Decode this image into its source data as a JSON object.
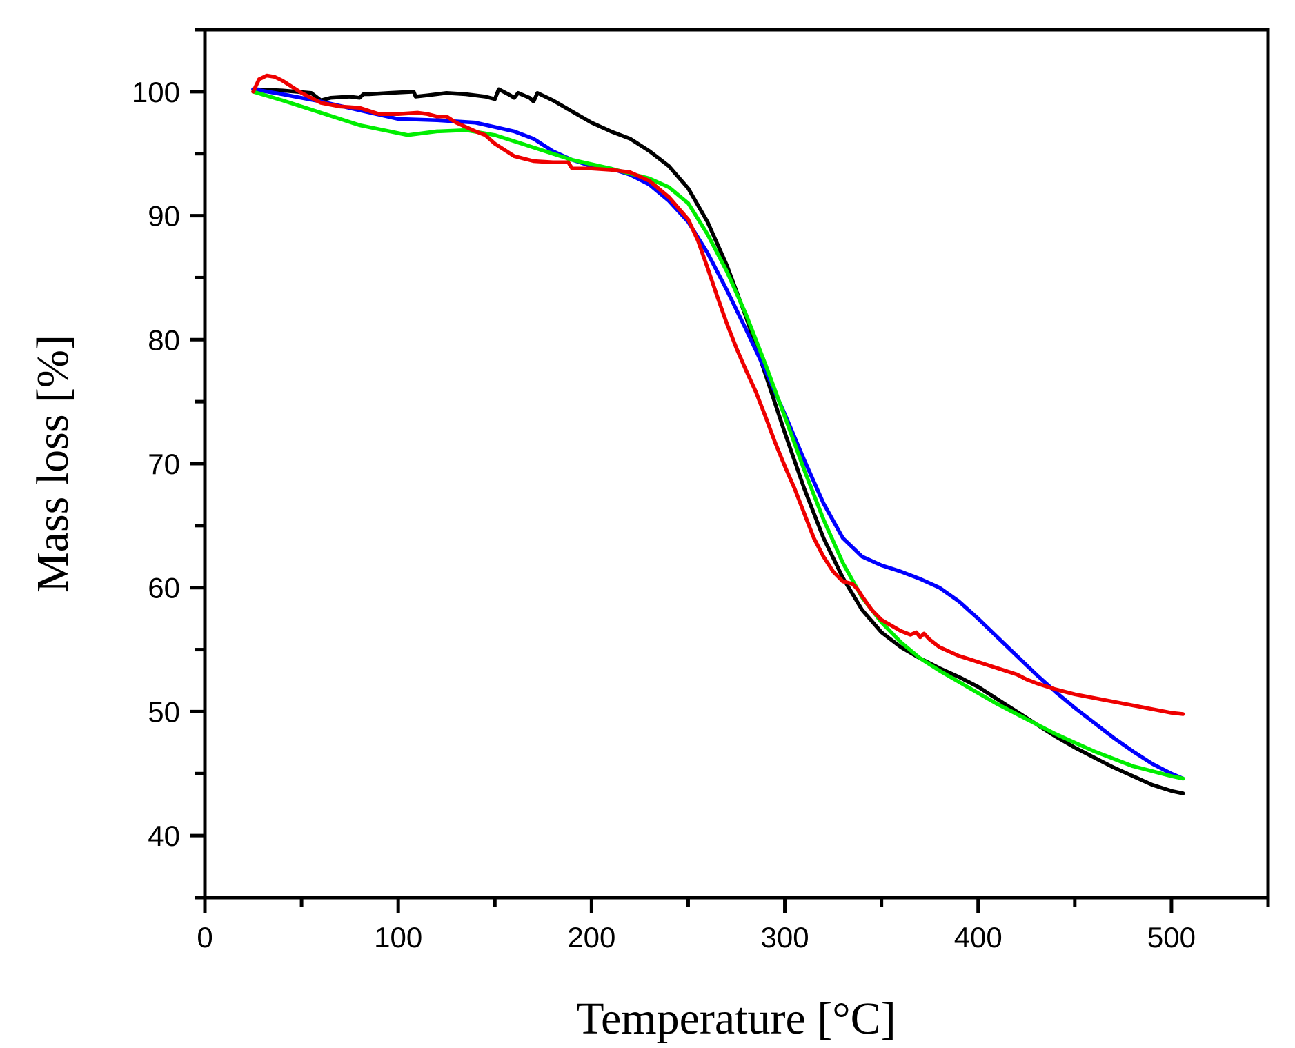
{
  "chart_data": {
    "type": "line",
    "title": "",
    "xlabel": "Temperature [°C]",
    "ylabel": "Mass loss [%]",
    "xlim": [
      0,
      550
    ],
    "ylim": [
      35,
      105
    ],
    "xticks": [
      0,
      100,
      200,
      300,
      400,
      500
    ],
    "xticks_minor": [
      50,
      150,
      250,
      350,
      450,
      550
    ],
    "xtick_labels": [
      "0",
      "100",
      "200",
      "300",
      "400",
      "500"
    ],
    "yticks": [
      40,
      50,
      60,
      70,
      80,
      90,
      100
    ],
    "yticks_minor": [
      35,
      45,
      55,
      65,
      75,
      85,
      95,
      105
    ],
    "ytick_labels": [
      "40",
      "50",
      "60",
      "70",
      "80",
      "90",
      "100"
    ],
    "grid": false,
    "legend": "none",
    "series": [
      {
        "name": "black",
        "color": "#000000",
        "x": [
          25,
          40,
          55,
          60,
          65,
          75,
          80,
          82,
          85,
          95,
          108,
          109,
          115,
          125,
          135,
          145,
          150,
          152,
          158,
          160,
          162,
          168,
          170,
          172,
          180,
          190,
          200,
          210,
          220,
          230,
          240,
          250,
          260,
          270,
          280,
          290,
          300,
          310,
          320,
          330,
          340,
          350,
          360,
          370,
          380,
          390,
          400,
          410,
          420,
          430,
          440,
          450,
          460,
          470,
          480,
          490,
          500,
          506
        ],
        "y": [
          100.2,
          100.1,
          99.9,
          99.3,
          99.5,
          99.6,
          99.5,
          99.8,
          99.8,
          99.9,
          100.0,
          99.6,
          99.7,
          99.9,
          99.8,
          99.6,
          99.4,
          100.2,
          99.7,
          99.5,
          99.9,
          99.5,
          99.2,
          99.9,
          99.3,
          98.4,
          97.5,
          96.8,
          96.2,
          95.2,
          94.0,
          92.2,
          89.5,
          86.0,
          81.8,
          77.2,
          72.5,
          68.0,
          64.0,
          60.8,
          58.2,
          56.4,
          55.2,
          54.3,
          53.5,
          52.8,
          52.0,
          51.0,
          50.0,
          49.0,
          48.0,
          47.1,
          46.3,
          45.5,
          44.8,
          44.1,
          43.6,
          43.4
        ]
      },
      {
        "name": "blue",
        "color": "#0000ff",
        "x": [
          25,
          40,
          60,
          80,
          100,
          120,
          140,
          160,
          170,
          180,
          190,
          200,
          210,
          220,
          230,
          240,
          250,
          260,
          270,
          280,
          290,
          300,
          310,
          320,
          330,
          340,
          350,
          360,
          370,
          380,
          390,
          400,
          410,
          420,
          430,
          440,
          450,
          460,
          470,
          480,
          490,
          500,
          506
        ],
        "y": [
          100.2,
          99.8,
          99.2,
          98.5,
          97.8,
          97.7,
          97.5,
          96.8,
          96.2,
          95.2,
          94.5,
          94.0,
          93.8,
          93.3,
          92.5,
          91.2,
          89.5,
          87.0,
          84.0,
          80.8,
          77.5,
          74.0,
          70.3,
          66.8,
          64.0,
          62.5,
          61.8,
          61.3,
          60.7,
          60.0,
          58.9,
          57.5,
          56.0,
          54.5,
          53.0,
          51.6,
          50.3,
          49.1,
          47.9,
          46.8,
          45.8,
          45.0,
          44.6
        ]
      },
      {
        "name": "green",
        "color": "#00ee00",
        "x": [
          25,
          40,
          60,
          80,
          105,
          120,
          135,
          150,
          170,
          190,
          210,
          230,
          240,
          250,
          260,
          270,
          280,
          290,
          300,
          310,
          320,
          330,
          340,
          350,
          360,
          370,
          380,
          390,
          400,
          410,
          420,
          430,
          440,
          450,
          460,
          470,
          480,
          490,
          500,
          506
        ],
        "y": [
          100.0,
          99.3,
          98.3,
          97.3,
          96.5,
          96.8,
          96.9,
          96.5,
          95.5,
          94.5,
          93.8,
          93.0,
          92.3,
          91.0,
          88.5,
          85.5,
          82.0,
          78.0,
          73.8,
          69.5,
          65.5,
          62.0,
          59.2,
          57.2,
          55.6,
          54.3,
          53.3,
          52.4,
          51.5,
          50.6,
          49.8,
          49.0,
          48.2,
          47.5,
          46.8,
          46.2,
          45.6,
          45.2,
          44.8,
          44.6
        ]
      },
      {
        "name": "red",
        "color": "#ee0000",
        "x": [
          25,
          28,
          32,
          36,
          40,
          45,
          50,
          55,
          60,
          70,
          80,
          90,
          100,
          110,
          115,
          120,
          125,
          130,
          140,
          145,
          150,
          160,
          170,
          180,
          188,
          190,
          200,
          210,
          220,
          230,
          240,
          250,
          255,
          260,
          265,
          270,
          275,
          280,
          285,
          290,
          295,
          300,
          305,
          310,
          315,
          320,
          325,
          330,
          335,
          338,
          340,
          345,
          350,
          360,
          365,
          368,
          370,
          372,
          375,
          380,
          390,
          400,
          410,
          420,
          425,
          430,
          440,
          450,
          460,
          470,
          480,
          490,
          500,
          506
        ],
        "y": [
          100.0,
          101.0,
          101.3,
          101.2,
          100.9,
          100.4,
          99.9,
          99.5,
          99.1,
          98.8,
          98.7,
          98.2,
          98.2,
          98.3,
          98.2,
          98.0,
          98.0,
          97.5,
          96.8,
          96.5,
          95.8,
          94.8,
          94.4,
          94.3,
          94.3,
          93.8,
          93.8,
          93.7,
          93.5,
          92.8,
          91.5,
          89.7,
          88.0,
          85.8,
          83.5,
          81.3,
          79.3,
          77.5,
          75.8,
          73.8,
          71.7,
          69.8,
          68.0,
          66.0,
          64.0,
          62.5,
          61.3,
          60.5,
          60.3,
          59.8,
          59.3,
          58.2,
          57.4,
          56.5,
          56.2,
          56.4,
          56.0,
          56.3,
          55.8,
          55.2,
          54.5,
          54.0,
          53.5,
          53.0,
          52.6,
          52.3,
          51.8,
          51.4,
          51.1,
          50.8,
          50.5,
          50.2,
          49.9,
          49.8
        ]
      }
    ]
  }
}
